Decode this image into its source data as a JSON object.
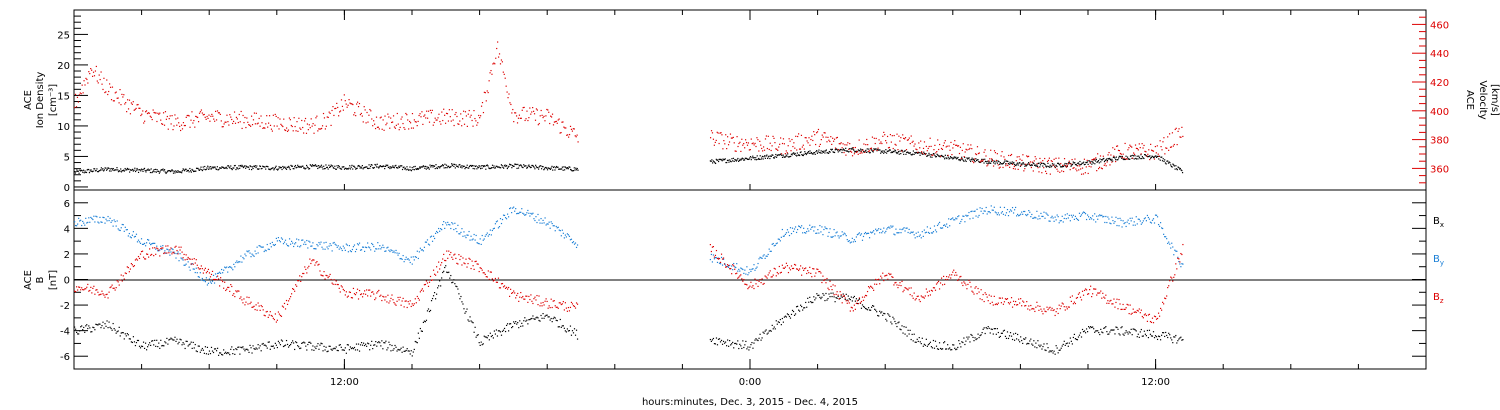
{
  "xaxis": {
    "label": "hours:minutes, Dec.  3, 2015 - Dec.  4, 2015",
    "ticks": [
      "12:00",
      "0:00",
      "12:00"
    ],
    "tick_hours": [
      12,
      24,
      36
    ],
    "range_hours": [
      4,
      44
    ]
  },
  "panel1": {
    "left_label": [
      "ACE",
      "Ion Density",
      "[cm⁻³]"
    ],
    "right_label": [
      "ACE",
      "Velocity",
      "[km/s]"
    ],
    "left_ticks": [
      "0",
      "5",
      "10",
      "15",
      "20",
      "25"
    ],
    "right_ticks": [
      "360",
      "380",
      "400",
      "420",
      "440",
      "460"
    ],
    "left_color": "#000000",
    "right_color": "#dd0000"
  },
  "panel2": {
    "left_label": [
      "ACE",
      "B",
      "[nT]"
    ],
    "ticks": [
      "-6",
      "-4",
      "-2",
      "0",
      "2",
      "4",
      "6"
    ],
    "legend": [
      {
        "name": "B",
        "sub": "x",
        "color": "#000000"
      },
      {
        "name": "B",
        "sub": "y",
        "color": "#1a7fd6"
      },
      {
        "name": "B",
        "sub": "z",
        "color": "#dd0000"
      }
    ]
  },
  "chart_data": [
    {
      "type": "scatter",
      "title": "",
      "xlabel": "hours:minutes, Dec.  3, 2015 - Dec.  4, 2015",
      "ylabel": "ACE Ion Density [cm⁻³]",
      "y2label": "ACE Velocity [km/s]",
      "xlim": [
        4,
        44
      ],
      "ylim": [
        -0.5,
        29
      ],
      "y2lim": [
        345,
        470
      ],
      "grid": false,
      "data_gap_hours": [
        18.9,
        22.8
      ],
      "series": [
        {
          "name": "Ion Density",
          "axis": "left",
          "color": "#000000",
          "x": [
            4,
            5,
            6,
            7,
            8,
            9,
            10,
            11,
            12,
            13,
            14,
            15,
            16,
            17,
            18,
            18.9,
            22.8,
            24,
            25,
            26,
            27,
            28,
            29,
            30,
            31,
            32,
            33,
            34,
            35,
            36,
            36.8
          ],
          "y": [
            2.5,
            3.0,
            2.8,
            2.6,
            3.2,
            3.3,
            3.2,
            3.4,
            3.3,
            3.5,
            3.1,
            3.6,
            3.3,
            3.5,
            3.2,
            3.0,
            4.2,
            4.8,
            5.3,
            5.8,
            6.2,
            5.9,
            5.6,
            4.8,
            4.3,
            3.8,
            3.6,
            4.1,
            4.9,
            5.2,
            2.5
          ]
        },
        {
          "name": "Velocity",
          "axis": "right",
          "color": "#dd0000",
          "x": [
            4,
            4.5,
            5,
            6,
            7,
            8,
            9,
            10,
            11,
            11.5,
            12,
            13,
            14,
            15,
            16,
            16.5,
            17,
            18,
            18.9,
            22.8,
            23.5,
            24,
            25,
            26,
            27,
            28,
            29,
            30,
            31,
            32,
            33,
            34,
            35,
            36,
            36.8
          ],
          "y": [
            405,
            430,
            415,
            398,
            392,
            396,
            394,
            392,
            390,
            394,
            406,
            392,
            394,
            396,
            395,
            445,
            398,
            396,
            382,
            382,
            378,
            378,
            376,
            382,
            374,
            380,
            376,
            374,
            368,
            364,
            362,
            362,
            372,
            372,
            386
          ]
        }
      ]
    },
    {
      "type": "scatter",
      "title": "",
      "xlabel": "hours:minutes, Dec.  3, 2015 - Dec.  4, 2015",
      "ylabel": "ACE B [nT]",
      "xlim": [
        4,
        44
      ],
      "ylim": [
        -7,
        7
      ],
      "grid": false,
      "zero_line": true,
      "data_gap_hours": [
        18.9,
        22.8
      ],
      "series": [
        {
          "name": "Bx",
          "color": "#000000",
          "x": [
            4,
            5,
            6,
            7,
            8,
            9,
            10,
            11,
            12,
            13,
            14,
            15,
            16,
            17,
            18,
            18.9,
            22.8,
            24,
            25,
            26,
            27,
            28,
            29,
            30,
            31,
            32,
            33,
            34,
            35,
            36,
            36.8
          ],
          "y": [
            -4.0,
            -3.5,
            -5.2,
            -4.8,
            -5.6,
            -5.5,
            -5.0,
            -5.2,
            -5.4,
            -5.0,
            -5.6,
            1.0,
            -4.9,
            -3.5,
            -2.8,
            -4.3,
            -4.6,
            -5.2,
            -3.0,
            -1.2,
            -1.5,
            -2.8,
            -4.8,
            -5.3,
            -3.9,
            -4.6,
            -5.5,
            -3.9,
            -4.0,
            -4.3,
            -4.7
          ]
        },
        {
          "name": "By",
          "color": "#1a7fd6",
          "x": [
            4,
            5,
            6,
            7,
            8,
            9,
            10,
            11,
            12,
            13,
            14,
            15,
            16,
            17,
            18,
            18.9,
            22.8,
            24,
            25,
            26,
            27,
            28,
            29,
            30,
            31,
            32,
            33,
            34,
            35,
            36,
            36.8
          ],
          "y": [
            4.5,
            4.8,
            3.0,
            2.0,
            -0.2,
            1.8,
            3.0,
            2.8,
            2.5,
            2.6,
            1.5,
            4.5,
            3.0,
            5.6,
            4.5,
            2.8,
            1.8,
            0.6,
            3.8,
            4.0,
            3.2,
            4.0,
            3.6,
            4.6,
            5.5,
            5.3,
            4.8,
            5.0,
            4.5,
            4.8,
            1.0
          ]
        },
        {
          "name": "Bz",
          "color": "#dd0000",
          "x": [
            4,
            5,
            6,
            7,
            8,
            9,
            10,
            11,
            12,
            13,
            14,
            15,
            16,
            17,
            18,
            18.9,
            22.8,
            24,
            25,
            26,
            27,
            28,
            29,
            30,
            31,
            32,
            33,
            34,
            35,
            36,
            36.8
          ],
          "y": [
            -0.5,
            -1.0,
            2.0,
            2.5,
            0.5,
            -1.5,
            -3.0,
            1.5,
            -1.0,
            -1.2,
            -2.0,
            2.0,
            1.0,
            -1.2,
            -1.8,
            -2.2,
            2.5,
            -0.5,
            1.0,
            0.5,
            -2.2,
            0.5,
            -1.5,
            0.5,
            -1.5,
            -1.8,
            -2.5,
            -0.8,
            -2.0,
            -3.2,
            2.5
          ]
        }
      ]
    }
  ]
}
